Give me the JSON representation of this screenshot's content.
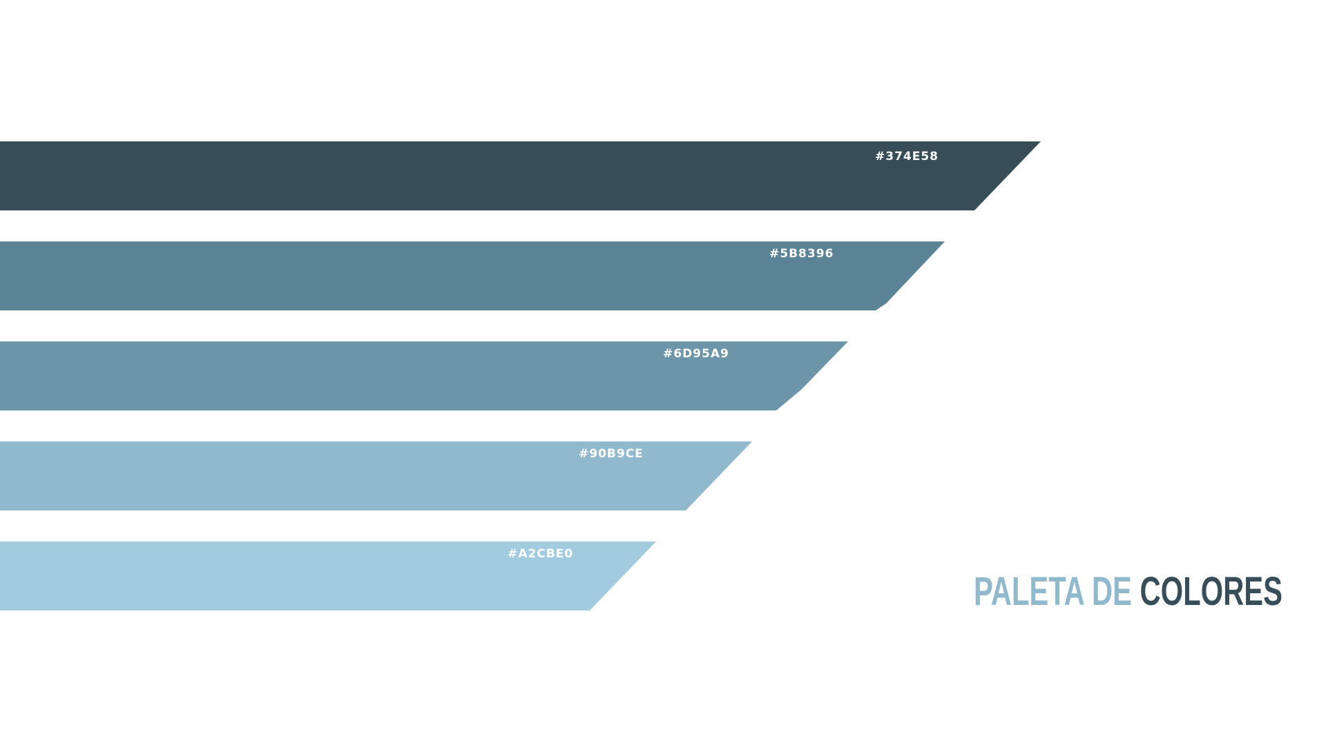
{
  "palette": {
    "swatches": [
      {
        "hex": "#374E58",
        "color": "#374E58"
      },
      {
        "hex": "#5B8396",
        "color": "#5B8396"
      },
      {
        "hex": "#6D95A9",
        "color": "#6D95A9"
      },
      {
        "hex": "#90B9CE",
        "color": "#90B9CE"
      },
      {
        "hex": "#A2CBE0",
        "color": "#A2CBE0"
      }
    ]
  },
  "title": {
    "part1": "PALETA DE ",
    "part2": "COLORES",
    "part1_color": "#90B9CE",
    "part2_color": "#374E58"
  }
}
